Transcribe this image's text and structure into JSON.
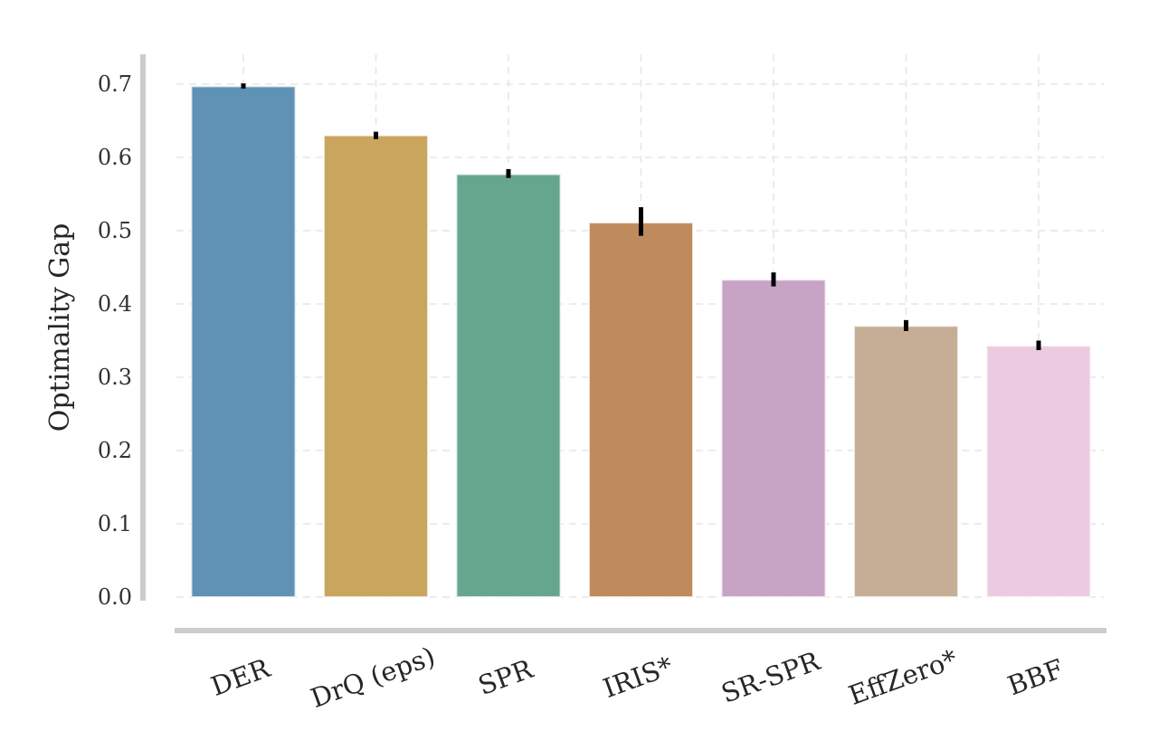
{
  "chart_data": {
    "type": "bar",
    "title": "",
    "xlabel": "",
    "ylabel": "Optimality Gap",
    "ylim": [
      0,
      0.74
    ],
    "yticks": [
      0.0,
      0.1,
      0.2,
      0.3,
      0.4,
      0.5,
      0.6,
      0.7
    ],
    "grid": true,
    "categories": [
      "DER",
      "DrQ (eps)",
      "SPR",
      "IRIS*",
      "SR-SPR",
      "EffZero*",
      "BBF"
    ],
    "values": [
      0.697,
      0.63,
      0.577,
      0.511,
      0.433,
      0.37,
      0.343
    ],
    "error_low": [
      0.694,
      0.625,
      0.572,
      0.493,
      0.424,
      0.363,
      0.337
    ],
    "error_high": [
      0.701,
      0.635,
      0.584,
      0.532,
      0.443,
      0.378,
      0.35
    ],
    "colors": [
      "#5f92b4",
      "#c9a55e",
      "#66a68e",
      "#bf8a5c",
      "#c7a3c5",
      "#c5ae95",
      "#eccbe2"
    ]
  }
}
